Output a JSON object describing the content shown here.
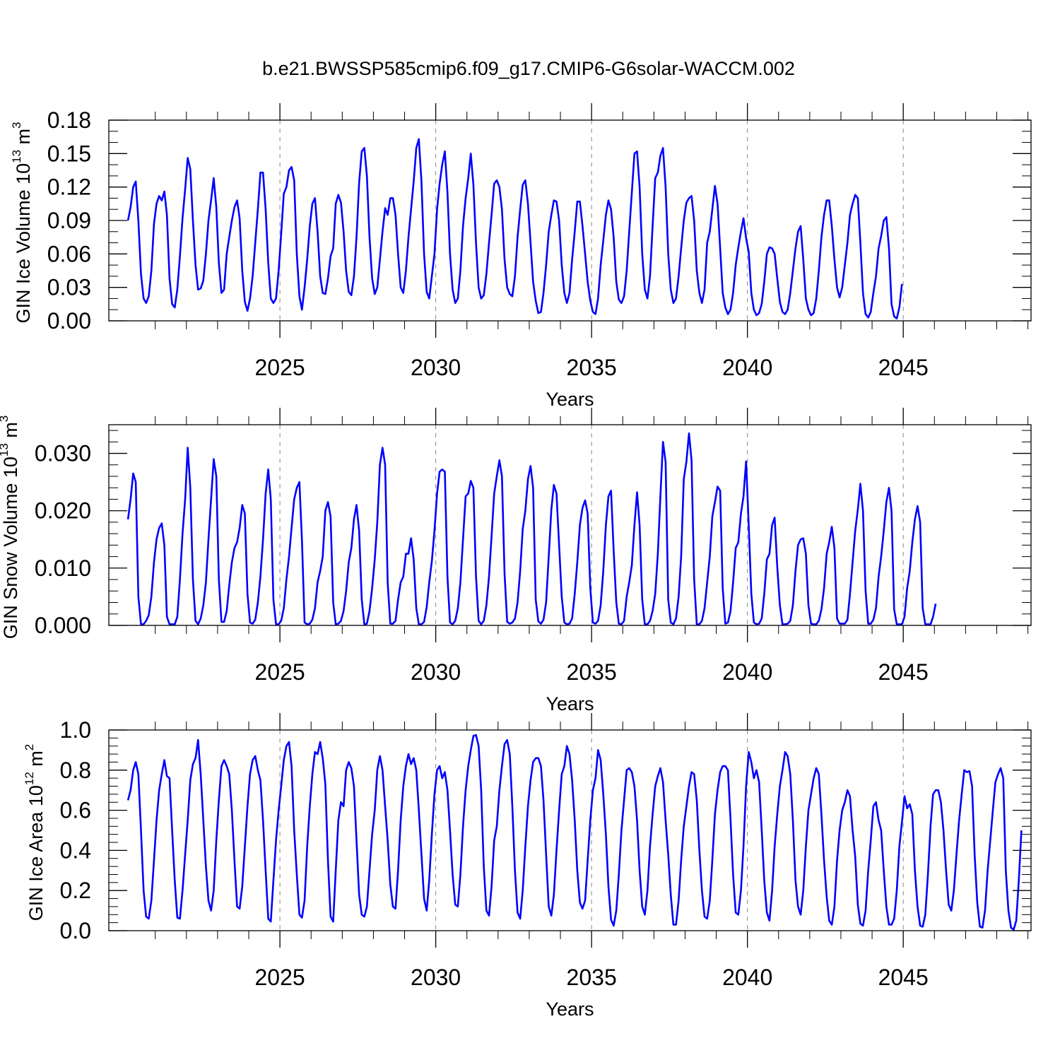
{
  "chart_data": {
    "title": "b.e21.BWSSP585cmip6.f09_g17.CMIP6-G6solar-WACCM.002",
    "panels": [
      {
        "type": "line",
        "ylabel": "GIN Ice Volume 10",
        "ylabel_exp": "13",
        "ylabel_unit": " m",
        "ylabel_unit_exp": "3",
        "xlabel": "Years",
        "xlim": [
          2020.1,
          2049.1
        ],
        "ylim": [
          0,
          0.18
        ],
        "yticks": [
          "0.00",
          "0.03",
          "0.06",
          "0.09",
          "0.12",
          "0.15",
          "0.18"
        ],
        "xticks": [
          "2025",
          "2030",
          "2035",
          "2040",
          "2045"
        ],
        "color": "#0000ff",
        "start_year": 2020,
        "monthly_values": [
          0.09,
          0.102,
          0.12,
          0.125,
          0.09,
          0.042,
          0.02,
          0.016,
          0.022,
          0.045,
          0.087,
          0.105,
          0.112,
          0.108,
          0.116,
          0.095,
          0.038,
          0.015,
          0.012,
          0.028,
          0.058,
          0.092,
          0.118,
          0.146,
          0.136,
          0.09,
          0.05,
          0.028,
          0.029,
          0.036,
          0.06,
          0.09,
          0.108,
          0.128,
          0.102,
          0.052,
          0.025,
          0.028,
          0.06,
          0.075,
          0.09,
          0.102,
          0.108,
          0.092,
          0.045,
          0.017,
          0.009,
          0.02,
          0.04,
          0.07,
          0.1,
          0.133,
          0.133,
          0.1,
          0.052,
          0.02,
          0.016,
          0.02,
          0.045,
          0.078,
          0.114,
          0.12,
          0.135,
          0.138,
          0.126,
          0.06,
          0.022,
          0.01,
          0.03,
          0.055,
          0.085,
          0.105,
          0.11,
          0.08,
          0.04,
          0.025,
          0.024,
          0.038,
          0.058,
          0.065,
          0.105,
          0.113,
          0.106,
          0.08,
          0.045,
          0.026,
          0.023,
          0.04,
          0.075,
          0.124,
          0.152,
          0.155,
          0.13,
          0.075,
          0.038,
          0.024,
          0.03,
          0.055,
          0.08,
          0.101,
          0.095,
          0.11,
          0.11,
          0.095,
          0.06,
          0.03,
          0.025,
          0.045,
          0.075,
          0.1,
          0.125,
          0.155,
          0.163,
          0.125,
          0.06,
          0.026,
          0.02,
          0.04,
          0.06,
          0.1,
          0.123,
          0.14,
          0.152,
          0.115,
          0.06,
          0.028,
          0.016,
          0.02,
          0.045,
          0.085,
          0.11,
          0.128,
          0.15,
          0.122,
          0.07,
          0.03,
          0.02,
          0.023,
          0.042,
          0.07,
          0.095,
          0.123,
          0.126,
          0.12,
          0.1,
          0.055,
          0.03,
          0.024,
          0.022,
          0.04,
          0.075,
          0.1,
          0.122,
          0.126,
          0.105,
          0.07,
          0.035,
          0.018,
          0.007,
          0.008,
          0.025,
          0.05,
          0.08,
          0.095,
          0.108,
          0.107,
          0.09,
          0.05,
          0.025,
          0.016,
          0.025,
          0.055,
          0.08,
          0.107,
          0.107,
          0.085,
          0.06,
          0.035,
          0.018,
          0.008,
          0.006,
          0.02,
          0.05,
          0.072,
          0.095,
          0.108,
          0.1,
          0.075,
          0.035,
          0.019,
          0.016,
          0.022,
          0.045,
          0.08,
          0.115,
          0.15,
          0.152,
          0.12,
          0.06,
          0.028,
          0.02,
          0.04,
          0.085,
          0.128,
          0.133,
          0.148,
          0.155,
          0.12,
          0.06,
          0.028,
          0.016,
          0.02,
          0.04,
          0.065,
          0.09,
          0.106,
          0.11,
          0.112,
          0.09,
          0.045,
          0.025,
          0.016,
          0.028,
          0.07,
          0.08,
          0.1,
          0.121,
          0.105,
          0.065,
          0.025,
          0.012,
          0.006,
          0.01,
          0.025,
          0.05,
          0.066,
          0.08,
          0.092,
          0.074,
          0.062,
          0.025,
          0.01,
          0.005,
          0.007,
          0.015,
          0.035,
          0.06,
          0.066,
          0.065,
          0.06,
          0.038,
          0.017,
          0.008,
          0.006,
          0.01,
          0.025,
          0.045,
          0.065,
          0.08,
          0.085,
          0.055,
          0.02,
          0.01,
          0.005,
          0.007,
          0.02,
          0.045,
          0.075,
          0.095,
          0.108,
          0.108,
          0.085,
          0.055,
          0.03,
          0.021,
          0.03,
          0.05,
          0.07,
          0.095,
          0.105,
          0.113,
          0.11,
          0.07,
          0.025,
          0.006,
          0.003,
          0.008,
          0.025,
          0.04,
          0.065,
          0.076,
          0.09,
          0.093,
          0.065,
          0.015,
          0.004,
          0.002,
          0.012,
          0.033
        ]
      },
      {
        "type": "line",
        "ylabel": "GIN Snow Volume 10",
        "ylabel_exp": "13",
        "ylabel_unit": " m",
        "ylabel_unit_exp": "3",
        "xlabel": "Years",
        "xlim": [
          2020.1,
          2049.1
        ],
        "ylim": [
          0,
          0.035
        ],
        "yticks": [
          "0.000",
          "0.010",
          "0.020",
          "0.030"
        ],
        "ytick_values": [
          0,
          0.01,
          0.02,
          0.03
        ],
        "xticks": [
          "2025",
          "2030",
          "2035",
          "2040",
          "2045"
        ],
        "color": "#0000ff",
        "start_year": 2020,
        "monthly_values": [
          0.0185,
          0.022,
          0.0265,
          0.025,
          0.005,
          0.0002,
          0.0002,
          0.0008,
          0.0018,
          0.005,
          0.011,
          0.015,
          0.017,
          0.0178,
          0.014,
          0.0015,
          0.0002,
          0.0002,
          0.0002,
          0.0015,
          0.008,
          0.016,
          0.022,
          0.031,
          0.024,
          0.008,
          0.0008,
          0.0002,
          0.0012,
          0.0035,
          0.0075,
          0.015,
          0.022,
          0.029,
          0.026,
          0.008,
          0.0006,
          0.0006,
          0.0025,
          0.007,
          0.011,
          0.0135,
          0.0145,
          0.017,
          0.021,
          0.0195,
          0.0055,
          0.0005,
          0.0003,
          0.001,
          0.004,
          0.0085,
          0.015,
          0.023,
          0.0272,
          0.022,
          0.0045,
          0.0002,
          0.0002,
          0.0008,
          0.003,
          0.008,
          0.012,
          0.017,
          0.022,
          0.024,
          0.025,
          0.0148,
          0.0005,
          0.0002,
          0.0003,
          0.001,
          0.003,
          0.0075,
          0.0095,
          0.012,
          0.02,
          0.0215,
          0.019,
          0.004,
          0.0002,
          0.0003,
          0.0008,
          0.0025,
          0.006,
          0.011,
          0.0135,
          0.0185,
          0.021,
          0.0165,
          0.0045,
          0.0002,
          0.0003,
          0.0025,
          0.0065,
          0.0115,
          0.018,
          0.028,
          0.031,
          0.028,
          0.0075,
          0.0003,
          0.0003,
          0.0008,
          0.0045,
          0.0075,
          0.0085,
          0.0125,
          0.0125,
          0.0152,
          0.0115,
          0.003,
          0.0002,
          0.0002,
          0.0006,
          0.0032,
          0.0075,
          0.0112,
          0.0165,
          0.023,
          0.0268,
          0.0272,
          0.0268,
          0.0085,
          0.0005,
          0.0002,
          0.0008,
          0.003,
          0.0075,
          0.015,
          0.0225,
          0.023,
          0.0252,
          0.024,
          0.0085,
          0.0008,
          0.0002,
          0.0008,
          0.0035,
          0.0085,
          0.0155,
          0.023,
          0.026,
          0.0288,
          0.026,
          0.009,
          0.0006,
          0.0003,
          0.0005,
          0.0012,
          0.004,
          0.0095,
          0.0168,
          0.02,
          0.0255,
          0.0278,
          0.024,
          0.0045,
          0.0007,
          0.0003,
          0.001,
          0.004,
          0.012,
          0.0202,
          0.0245,
          0.023,
          0.014,
          0.005,
          0.0005,
          0.0002,
          0.0003,
          0.0012,
          0.0055,
          0.011,
          0.0175,
          0.0205,
          0.0218,
          0.0195,
          0.0065,
          0.0005,
          0.0003,
          0.0008,
          0.0035,
          0.0095,
          0.0175,
          0.0225,
          0.0235,
          0.013,
          0.004,
          0.0003,
          0.0002,
          0.0008,
          0.005,
          0.0075,
          0.0105,
          0.0175,
          0.0232,
          0.0175,
          0.0045,
          0.0002,
          0.0002,
          0.0008,
          0.0025,
          0.0055,
          0.0125,
          0.0225,
          0.032,
          0.0285,
          0.0045,
          0.0005,
          0.0002,
          0.0012,
          0.005,
          0.012,
          0.0255,
          0.0285,
          0.0335,
          0.0288,
          0.008,
          0.0002,
          0.0002,
          0.0008,
          0.003,
          0.0075,
          0.012,
          0.019,
          0.0215,
          0.0242,
          0.0235,
          0.0065,
          0.0003,
          0.0005,
          0.0025,
          0.0075,
          0.0135,
          0.0145,
          0.0195,
          0.0225,
          0.0286,
          0.0175,
          0.0055,
          0.0005,
          0.0002,
          0.0003,
          0.0012,
          0.0055,
          0.0115,
          0.0125,
          0.0175,
          0.0188,
          0.0102,
          0.0035,
          0.0002,
          0.0002,
          0.0003,
          0.0008,
          0.0035,
          0.0095,
          0.014,
          0.015,
          0.0152,
          0.0125,
          0.0035,
          0.0003,
          0.0002,
          0.0002,
          0.0008,
          0.0028,
          0.0065,
          0.0125,
          0.0145,
          0.0172,
          0.0135,
          0.0012,
          0.0003,
          0.0003,
          0.0003,
          0.001,
          0.0055,
          0.011,
          0.0165,
          0.0202,
          0.0247,
          0.02,
          0.006,
          0.0003,
          0.0003,
          0.001,
          0.003,
          0.0085,
          0.012,
          0.0165,
          0.0215,
          0.024,
          0.02,
          0.0028,
          0.0002,
          0.0002,
          0.0002,
          0.0015,
          0.0065,
          0.0095,
          0.0145,
          0.0185,
          0.0208,
          0.018,
          0.003,
          0.0002,
          0.0002,
          0.0002,
          0.0015,
          0.0038
        ]
      },
      {
        "type": "line",
        "ylabel": "GIN Ice Area 10",
        "ylabel_exp": "12",
        "ylabel_unit": " m",
        "ylabel_unit_exp": "2",
        "xlabel": "Years",
        "xlim": [
          2020.1,
          2049.1
        ],
        "ylim": [
          0,
          1.0
        ],
        "yticks": [
          "0.0",
          "0.2",
          "0.4",
          "0.6",
          "0.8",
          "1.0"
        ],
        "ytick_values": [
          0,
          0.2,
          0.4,
          0.6,
          0.8,
          1.0
        ],
        "xticks": [
          "2025",
          "2030",
          "2035",
          "2040",
          "2045"
        ],
        "color": "#0000ff",
        "start_year": 2020,
        "monthly_values": [
          0.65,
          0.7,
          0.8,
          0.84,
          0.78,
          0.5,
          0.2,
          0.07,
          0.06,
          0.15,
          0.35,
          0.55,
          0.7,
          0.78,
          0.85,
          0.77,
          0.76,
          0.5,
          0.25,
          0.065,
          0.06,
          0.2,
          0.38,
          0.55,
          0.75,
          0.83,
          0.86,
          0.95,
          0.78,
          0.55,
          0.32,
          0.15,
          0.1,
          0.2,
          0.45,
          0.65,
          0.82,
          0.85,
          0.82,
          0.78,
          0.6,
          0.35,
          0.12,
          0.11,
          0.22,
          0.42,
          0.62,
          0.78,
          0.85,
          0.87,
          0.8,
          0.75,
          0.55,
          0.3,
          0.06,
          0.045,
          0.25,
          0.45,
          0.6,
          0.72,
          0.85,
          0.92,
          0.94,
          0.82,
          0.5,
          0.28,
          0.08,
          0.065,
          0.15,
          0.42,
          0.62,
          0.78,
          0.89,
          0.88,
          0.94,
          0.86,
          0.73,
          0.35,
          0.07,
          0.045,
          0.3,
          0.55,
          0.64,
          0.62,
          0.8,
          0.84,
          0.81,
          0.72,
          0.45,
          0.18,
          0.08,
          0.07,
          0.12,
          0.3,
          0.48,
          0.6,
          0.8,
          0.87,
          0.8,
          0.62,
          0.45,
          0.23,
          0.12,
          0.11,
          0.3,
          0.55,
          0.72,
          0.82,
          0.88,
          0.83,
          0.86,
          0.8,
          0.6,
          0.38,
          0.16,
          0.1,
          0.25,
          0.48,
          0.68,
          0.8,
          0.82,
          0.76,
          0.79,
          0.7,
          0.5,
          0.28,
          0.13,
          0.12,
          0.28,
          0.52,
          0.7,
          0.82,
          0.9,
          0.97,
          0.975,
          0.92,
          0.7,
          0.32,
          0.1,
          0.075,
          0.22,
          0.45,
          0.52,
          0.7,
          0.82,
          0.93,
          0.95,
          0.88,
          0.62,
          0.3,
          0.09,
          0.06,
          0.2,
          0.42,
          0.62,
          0.75,
          0.84,
          0.86,
          0.86,
          0.82,
          0.65,
          0.38,
          0.12,
          0.075,
          0.18,
          0.4,
          0.6,
          0.78,
          0.82,
          0.92,
          0.88,
          0.75,
          0.55,
          0.3,
          0.14,
          0.11,
          0.15,
          0.35,
          0.55,
          0.7,
          0.76,
          0.9,
          0.85,
          0.68,
          0.48,
          0.22,
          0.055,
          0.025,
          0.1,
          0.28,
          0.5,
          0.65,
          0.8,
          0.81,
          0.79,
          0.72,
          0.55,
          0.3,
          0.12,
          0.08,
          0.2,
          0.42,
          0.58,
          0.72,
          0.77,
          0.81,
          0.74,
          0.55,
          0.38,
          0.18,
          0.03,
          0.03,
          0.15,
          0.35,
          0.52,
          0.62,
          0.72,
          0.79,
          0.78,
          0.65,
          0.4,
          0.2,
          0.07,
          0.06,
          0.15,
          0.35,
          0.58,
          0.7,
          0.79,
          0.82,
          0.82,
          0.8,
          0.55,
          0.28,
          0.09,
          0.08,
          0.2,
          0.42,
          0.72,
          0.89,
          0.84,
          0.76,
          0.8,
          0.74,
          0.5,
          0.25,
          0.09,
          0.05,
          0.2,
          0.42,
          0.58,
          0.72,
          0.8,
          0.89,
          0.87,
          0.78,
          0.55,
          0.25,
          0.12,
          0.08,
          0.2,
          0.42,
          0.6,
          0.68,
          0.76,
          0.81,
          0.78,
          0.58,
          0.35,
          0.17,
          0.05,
          0.03,
          0.12,
          0.35,
          0.5,
          0.6,
          0.64,
          0.7,
          0.67,
          0.5,
          0.37,
          0.13,
          0.035,
          0.025,
          0.1,
          0.3,
          0.45,
          0.62,
          0.64,
          0.55,
          0.5,
          0.3,
          0.12,
          0.03,
          0.03,
          0.06,
          0.2,
          0.42,
          0.54,
          0.67,
          0.61,
          0.63,
          0.58,
          0.3,
          0.12,
          0.025,
          0.02,
          0.08,
          0.28,
          0.52,
          0.68,
          0.7,
          0.7,
          0.64,
          0.5,
          0.3,
          0.13,
          0.1,
          0.2,
          0.38,
          0.55,
          0.68,
          0.8,
          0.79,
          0.795,
          0.72,
          0.38,
          0.14,
          0.02,
          0.015,
          0.1,
          0.3,
          0.45,
          0.6,
          0.74,
          0.78,
          0.81,
          0.76,
          0.3,
          0.1,
          0.015,
          0.005,
          0.05,
          0.25,
          0.5
        ]
      }
    ]
  }
}
